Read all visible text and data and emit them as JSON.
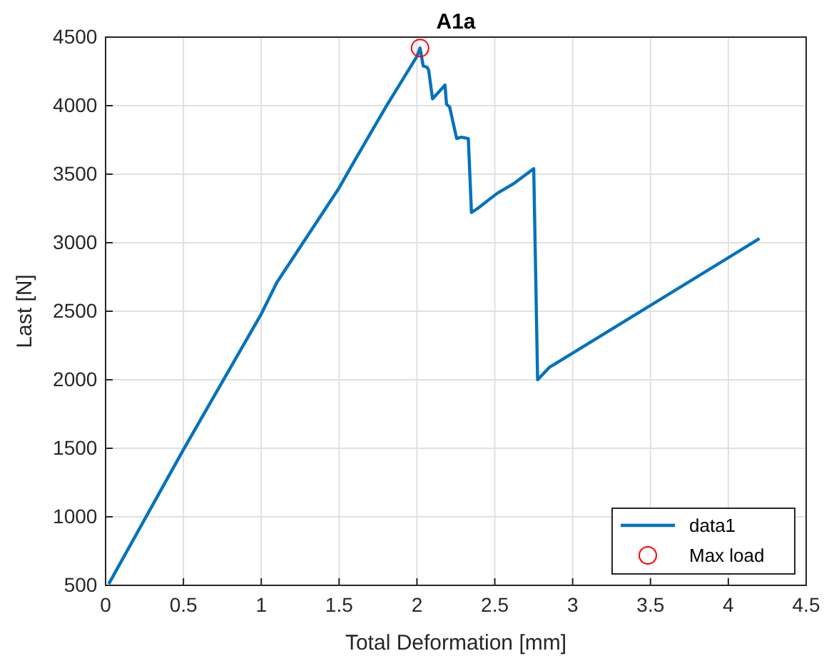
{
  "chart_data": {
    "type": "line",
    "title": "A1a",
    "xlabel": "Total Deformation [mm]",
    "ylabel": "Last [N]",
    "xlim": [
      0,
      4.5
    ],
    "xticks": [
      0,
      0.5,
      1,
      1.5,
      2,
      2.5,
      3,
      3.5,
      4,
      4.5
    ],
    "ylim": [
      500,
      4500
    ],
    "yticks": [
      500,
      1000,
      1500,
      2000,
      2500,
      3000,
      3500,
      4000,
      4500
    ],
    "grid": true,
    "legend": "bottom right",
    "series": [
      {
        "name": "data1",
        "color": "#0072bd",
        "marker": "none",
        "x": [
          0.02,
          0.5,
          1.0,
          1.1,
          1.5,
          1.6,
          1.8,
          2.0,
          2.02,
          2.04,
          2.065,
          2.075,
          2.1,
          2.18,
          2.19,
          2.21,
          2.255,
          2.285,
          2.33,
          2.35,
          2.39,
          2.515,
          2.62,
          2.75,
          2.775,
          2.85,
          4.2
        ],
        "values": [
          510,
          1490,
          2480,
          2710,
          3400,
          3600,
          3990,
          4360,
          4420,
          4290,
          4280,
          4260,
          4050,
          4150,
          4010,
          3990,
          3760,
          3770,
          3760,
          3220,
          3250,
          3360,
          3430,
          3540,
          2000,
          2090,
          3030
        ]
      },
      {
        "name": "Max load",
        "color": "#ff0000",
        "type": "scatter",
        "marker": "circle",
        "x": [
          2.02
        ],
        "values": [
          4420
        ]
      }
    ]
  }
}
